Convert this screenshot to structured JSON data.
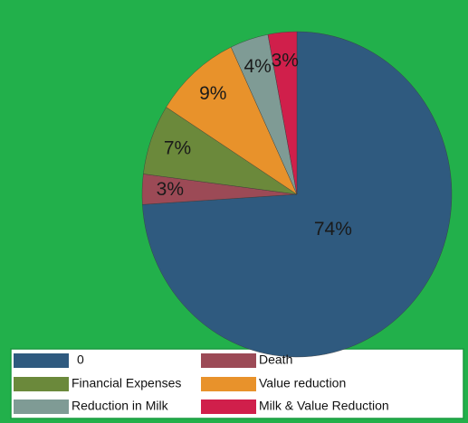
{
  "chart_data": {
    "type": "pie",
    "categories": [
      "0",
      "Death",
      "Financial Expenses",
      "Value reduction",
      "Reduction in Milk",
      "Milk & Value Reduction"
    ],
    "values": [
      74,
      3,
      7,
      9,
      4,
      3
    ],
    "value_labels": [
      "74%",
      "3%",
      "7%",
      "9%",
      "4%",
      "3%"
    ],
    "colors": [
      "#2f5a7f",
      "#9c4a56",
      "#6b893b",
      "#e8922b",
      "#7f9b95",
      "#d01f4b"
    ]
  }
}
